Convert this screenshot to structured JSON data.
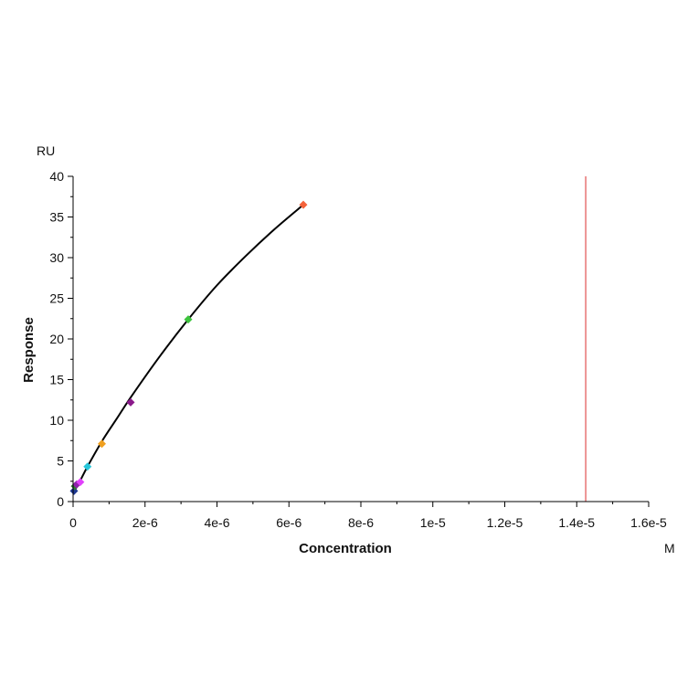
{
  "chart_data": {
    "type": "scatter",
    "title": "",
    "xlabel": "Concentration",
    "ylabel": "Response",
    "x_unit": "M",
    "y_unit": "RU",
    "xlim": [
      0,
      1.6e-05
    ],
    "ylim": [
      0,
      40
    ],
    "x_ticks": [
      0,
      2e-06,
      4e-06,
      6e-06,
      8e-06,
      1e-05,
      1.2e-05,
      1.4e-05,
      1.6e-05
    ],
    "x_tick_labels": [
      "0",
      "2e-6",
      "4e-6",
      "6e-6",
      "8e-6",
      "1e-5",
      "1.2e-5",
      "1.4e-5",
      "1.6e-5"
    ],
    "y_ticks": [
      0,
      5,
      10,
      15,
      20,
      25,
      30,
      35,
      40
    ],
    "y_tick_labels": [
      "0",
      "5",
      "10",
      "15",
      "20",
      "25",
      "30",
      "35",
      "40"
    ],
    "grid": false,
    "legend": "none",
    "points": [
      {
        "x": 2.5e-08,
        "y": 1.3,
        "color": "#1f3a93"
      },
      {
        "x": 5e-08,
        "y": 1.9,
        "color": "#2e7d32"
      },
      {
        "x": 1e-07,
        "y": 2.1,
        "color": "#8e24aa"
      },
      {
        "x": 2e-07,
        "y": 2.4,
        "color": "#e040fb"
      },
      {
        "x": 4e-07,
        "y": 4.3,
        "color": "#26c6da"
      },
      {
        "x": 8e-07,
        "y": 7.1,
        "color": "#f0a020"
      },
      {
        "x": 1.6e-06,
        "y": 12.2,
        "color": "#8b1a8b"
      },
      {
        "x": 3.2e-06,
        "y": 22.4,
        "color": "#3cc43c"
      },
      {
        "x": 6.4e-06,
        "y": 36.5,
        "color": "#f4623a"
      }
    ],
    "fit_curve": {
      "color": "#000000",
      "x": [
        0,
        2e-07,
        4e-07,
        8e-07,
        1.2e-06,
        1.6e-06,
        2.4e-06,
        3.2e-06,
        4e-06,
        4.8e-06,
        5.6e-06,
        6.4e-06
      ],
      "y": [
        1.0,
        2.6,
        4.3,
        7.4,
        10.1,
        12.8,
        17.8,
        22.4,
        26.6,
        30.2,
        33.5,
        36.5
      ]
    },
    "reference_line": {
      "x": 1.425e-05,
      "color": "#e05050"
    }
  }
}
